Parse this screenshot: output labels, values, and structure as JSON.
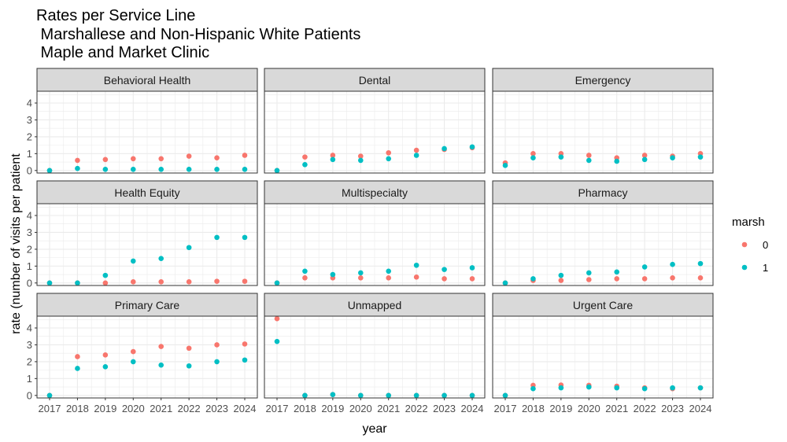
{
  "chart_data": {
    "type": "scatter",
    "title_lines": [
      "Rates per Service Line",
      " Marshallese and Non-Hispanic White Patients",
      " Maple and Market Clinic"
    ],
    "xlabel": "year",
    "ylabel": "rate (number of visits per patient",
    "x_ticks": [
      "2017",
      "2018",
      "2019",
      "2020",
      "2021",
      "2022",
      "2023",
      "2024"
    ],
    "y_ticks": [
      "0",
      "1",
      "2",
      "3",
      "4"
    ],
    "ylim": [
      -0.15,
      4.7
    ],
    "grid": true,
    "legend": {
      "title": "marsh",
      "position": "right",
      "entries": [
        "0",
        "1"
      ]
    },
    "colors": {
      "0": "#F8766D",
      "1": "#00BFC4",
      "strip_bg": "#D9D9D9",
      "grid": "#EBEBEB",
      "panel_border": "#333333"
    },
    "x": [
      2017,
      2018,
      2019,
      2020,
      2021,
      2022,
      2023,
      2024
    ],
    "panels": [
      {
        "name": "Behavioral Health",
        "series": [
          {
            "name": "0",
            "values": [
              0.0,
              0.6,
              0.65,
              0.7,
              0.7,
              0.85,
              0.75,
              0.9
            ]
          },
          {
            "name": "1",
            "values": [
              0.0,
              0.12,
              0.07,
              0.07,
              0.07,
              0.07,
              0.07,
              0.07
            ]
          }
        ]
      },
      {
        "name": "Dental",
        "series": [
          {
            "name": "0",
            "values": [
              0.0,
              0.8,
              0.9,
              0.85,
              1.05,
              1.2,
              1.25,
              1.35
            ]
          },
          {
            "name": "1",
            "values": [
              0.0,
              0.35,
              0.65,
              0.6,
              0.7,
              0.9,
              1.3,
              1.4
            ]
          }
        ]
      },
      {
        "name": "Emergency",
        "series": [
          {
            "name": "0",
            "values": [
              0.45,
              1.0,
              1.0,
              0.9,
              0.75,
              0.9,
              0.85,
              1.0
            ]
          },
          {
            "name": "1",
            "values": [
              0.3,
              0.75,
              0.8,
              0.6,
              0.55,
              0.65,
              0.75,
              0.8
            ]
          }
        ]
      },
      {
        "name": "Health Equity",
        "series": [
          {
            "name": "0",
            "values": [
              0.0,
              0.0,
              0.0,
              0.07,
              0.07,
              0.07,
              0.1,
              0.1
            ]
          },
          {
            "name": "1",
            "values": [
              0.0,
              0.0,
              0.45,
              1.3,
              1.45,
              2.1,
              2.7,
              2.7
            ]
          }
        ]
      },
      {
        "name": "Multispecialty",
        "series": [
          {
            "name": "0",
            "values": [
              0.0,
              0.3,
              0.3,
              0.3,
              0.3,
              0.35,
              0.25,
              0.25
            ]
          },
          {
            "name": "1",
            "values": [
              0.0,
              0.7,
              0.5,
              0.6,
              0.7,
              1.05,
              0.8,
              0.9
            ]
          }
        ]
      },
      {
        "name": "Pharmacy",
        "series": [
          {
            "name": "0",
            "values": [
              0.0,
              0.15,
              0.15,
              0.2,
              0.25,
              0.25,
              0.3,
              0.3
            ]
          },
          {
            "name": "1",
            "values": [
              0.0,
              0.25,
              0.45,
              0.6,
              0.65,
              0.95,
              1.1,
              1.15
            ]
          }
        ]
      },
      {
        "name": "Primary Care",
        "series": [
          {
            "name": "0",
            "values": [
              0.0,
              2.3,
              2.4,
              2.6,
              2.9,
              2.8,
              3.0,
              3.05
            ]
          },
          {
            "name": "1",
            "values": [
              0.0,
              1.6,
              1.7,
              2.0,
              1.8,
              1.75,
              2.0,
              2.1
            ]
          }
        ]
      },
      {
        "name": "Unmapped",
        "series": [
          {
            "name": "0",
            "values": [
              4.55,
              0.0,
              0.05,
              0.0,
              0.0,
              0.0,
              0.0,
              0.0
            ]
          },
          {
            "name": "1",
            "values": [
              3.2,
              0.0,
              0.05,
              0.0,
              0.0,
              0.0,
              0.0,
              0.0
            ]
          }
        ]
      },
      {
        "name": "Urgent Care",
        "series": [
          {
            "name": "0",
            "values": [
              0.0,
              0.6,
              0.62,
              0.6,
              0.55,
              0.45,
              0.4,
              0.45
            ]
          },
          {
            "name": "1",
            "values": [
              0.0,
              0.4,
              0.45,
              0.5,
              0.45,
              0.4,
              0.45,
              0.45
            ]
          }
        ]
      }
    ]
  }
}
